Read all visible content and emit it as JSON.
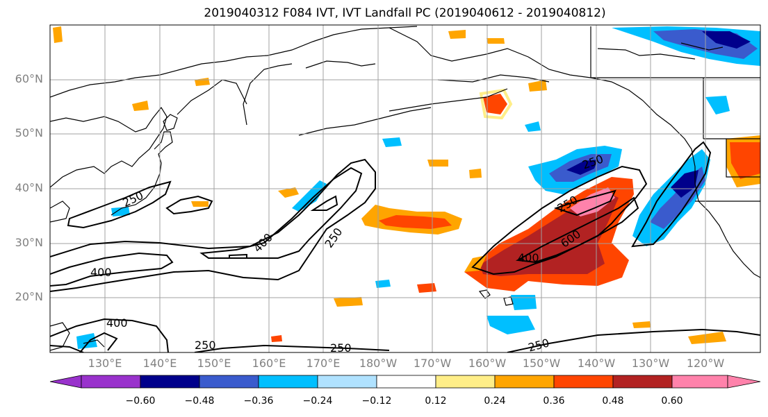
{
  "title": "2019040312 F084 IVT, IVT Landfall PC (2019040612 - 2019040812)",
  "lat_labels": [
    "60°N",
    "50°N",
    "40°N",
    "30°N",
    "20°N"
  ],
  "lon_labels": [
    "130°E",
    "140°E",
    "150°E",
    "160°E",
    "170°E",
    "180°W",
    "170°W",
    "160°W",
    "150°W",
    "140°W",
    "130°W",
    "120°W"
  ],
  "contour_labels": [
    "250",
    "400",
    "250",
    "400",
    "250",
    "400",
    "400",
    "250",
    "250",
    "250",
    "400",
    "600",
    "250",
    "250",
    "250"
  ],
  "colorbar": {
    "ticks": [
      "−0.60",
      "−0.48",
      "−0.36",
      "−0.24",
      "−0.12",
      "0.12",
      "0.24",
      "0.36",
      "0.48",
      "0.60"
    ],
    "colors": [
      "#9932cc",
      "#00008b",
      "#3a5bcd",
      "#00bfff",
      "#b0e2ff",
      "#ffffff",
      "#ffee88",
      "#ffa500",
      "#ff4500",
      "#b22222",
      "#ff82ab"
    ]
  }
}
